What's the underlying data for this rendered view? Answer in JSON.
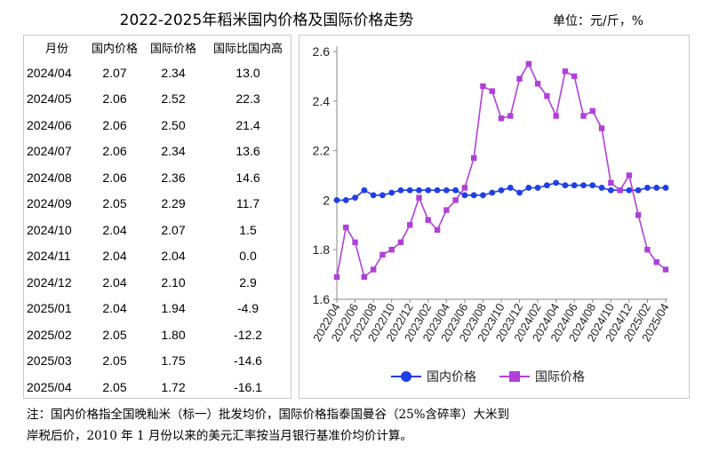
{
  "title": "2022-2025年稻米国内价格及国际价格走势",
  "unit": "单位：元/斤，%",
  "table": {
    "headers": [
      "月份",
      "国内价格",
      "国际价格",
      "国际比国内高"
    ],
    "rows": [
      [
        "2024/04",
        "2.07",
        "2.34",
        "13.0"
      ],
      [
        "2024/05",
        "2.06",
        "2.52",
        "22.3"
      ],
      [
        "2024/06",
        "2.06",
        "2.50",
        "21.4"
      ],
      [
        "2024/07",
        "2.06",
        "2.34",
        "13.6"
      ],
      [
        "2024/08",
        "2.06",
        "2.36",
        "14.6"
      ],
      [
        "2024/09",
        "2.05",
        "2.29",
        "11.7"
      ],
      [
        "2024/10",
        "2.04",
        "2.07",
        "1.5"
      ],
      [
        "2024/11",
        "2.04",
        "2.04",
        "0.0"
      ],
      [
        "2024/12",
        "2.04",
        "2.10",
        "2.9"
      ],
      [
        "2025/01",
        "2.04",
        "1.94",
        "-4.9"
      ],
      [
        "2025/02",
        "2.05",
        "1.80",
        "-12.2"
      ],
      [
        "2025/03",
        "2.05",
        "1.75",
        "-14.6"
      ],
      [
        "2025/04",
        "2.05",
        "1.72",
        "-16.1"
      ]
    ]
  },
  "chart_data": {
    "type": "line",
    "x": [
      "2022/04",
      "2022/05",
      "2022/06",
      "2022/07",
      "2022/08",
      "2022/09",
      "2022/10",
      "2022/11",
      "2022/12",
      "2023/01",
      "2023/02",
      "2023/03",
      "2023/04",
      "2023/05",
      "2023/06",
      "2023/07",
      "2023/08",
      "2023/09",
      "2023/10",
      "2023/11",
      "2023/12",
      "2024/01",
      "2024/02",
      "2024/03",
      "2024/04",
      "2024/05",
      "2024/06",
      "2024/07",
      "2024/08",
      "2024/09",
      "2024/10",
      "2024/11",
      "2024/12",
      "2025/01",
      "2025/02",
      "2025/03",
      "2025/04"
    ],
    "xticks": [
      "2022/04",
      "2022/06",
      "2022/08",
      "2022/10",
      "2022/12",
      "2023/02",
      "2023/04",
      "2023/06",
      "2023/08",
      "2023/10",
      "2023/12",
      "2024/02",
      "2024/04",
      "2024/06",
      "2024/08",
      "2024/10",
      "2024/12",
      "2025/02",
      "2025/04"
    ],
    "series": [
      {
        "name": "国内价格",
        "color": "#1f3fe6",
        "marker": "circle",
        "values": [
          2.0,
          2.0,
          2.01,
          2.04,
          2.02,
          2.02,
          2.03,
          2.04,
          2.04,
          2.04,
          2.04,
          2.04,
          2.04,
          2.04,
          2.02,
          2.02,
          2.02,
          2.03,
          2.04,
          2.05,
          2.03,
          2.05,
          2.05,
          2.06,
          2.07,
          2.06,
          2.06,
          2.06,
          2.06,
          2.05,
          2.04,
          2.04,
          2.04,
          2.04,
          2.05,
          2.05,
          2.05
        ]
      },
      {
        "name": "国际价格",
        "color": "#b040d8",
        "marker": "square",
        "values": [
          1.69,
          1.89,
          1.83,
          1.69,
          1.72,
          1.78,
          1.8,
          1.83,
          1.9,
          2.01,
          1.92,
          1.88,
          1.96,
          2.0,
          2.05,
          2.17,
          2.46,
          2.44,
          2.33,
          2.34,
          2.49,
          2.55,
          2.47,
          2.42,
          2.34,
          2.52,
          2.5,
          2.34,
          2.36,
          2.29,
          2.07,
          2.04,
          2.1,
          1.94,
          1.8,
          1.75,
          1.72
        ]
      }
    ],
    "ylim": [
      1.6,
      2.6
    ],
    "yticks": [
      "1.6",
      "1.8",
      "2",
      "2.2",
      "2.4",
      "2.6"
    ],
    "grid": false,
    "legend": "bottom"
  },
  "note": {
    "line1": "注：国内价格指全国晚籼米（标一）批发均价，国际价格指泰国曼谷（25%含碎率）大米到",
    "line2": "岸税后价，2010 年 1 月份以来的美元汇率按当月银行基准价均价计算。"
  }
}
